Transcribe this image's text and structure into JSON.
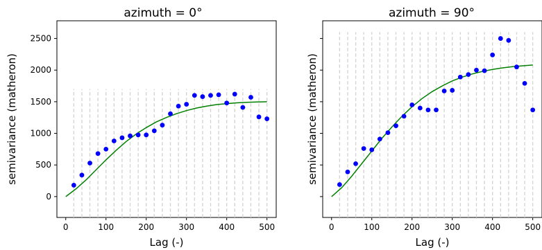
{
  "colors": {
    "points": "#0000ff",
    "model": "#008000",
    "bins": "#d3d3d3"
  },
  "chart_data": [
    {
      "type": "scatter",
      "title": "azimuth = 0°",
      "xlabel": "Lag (-)",
      "ylabel": "semivariance (matheron)",
      "xlim": [
        -22,
        523
      ],
      "ylim": [
        -330,
        2780
      ],
      "xticks": [
        "0",
        "100",
        "200",
        "300",
        "400",
        "500"
      ],
      "yticks": [
        "0",
        "500",
        "1000",
        "1500",
        "2000",
        "2500"
      ],
      "bin_lines_top": 1700,
      "bins": [
        20,
        40,
        60,
        80,
        100,
        120,
        140,
        160,
        180,
        200,
        220,
        240,
        260,
        280,
        300,
        320,
        340,
        360,
        380,
        400,
        420,
        440,
        460,
        480,
        500
      ],
      "points": {
        "x": [
          20,
          40,
          60,
          80,
          100,
          120,
          140,
          160,
          180,
          200,
          220,
          240,
          260,
          280,
          300,
          320,
          340,
          360,
          380,
          400,
          420,
          440,
          460,
          480,
          500
        ],
        "y": [
          180,
          340,
          530,
          680,
          750,
          880,
          930,
          960,
          975,
          975,
          1040,
          1130,
          1310,
          1430,
          1460,
          1600,
          1580,
          1600,
          1610,
          1480,
          1620,
          1410,
          1570,
          1260,
          1230
        ]
      },
      "model": {
        "x": [
          0,
          25,
          50,
          75,
          100,
          125,
          150,
          175,
          200,
          225,
          250,
          275,
          300,
          325,
          350,
          375,
          400,
          425,
          450,
          475,
          500
        ],
        "y": [
          0,
          120,
          260,
          420,
          580,
          730,
          870,
          990,
          1090,
          1180,
          1250,
          1310,
          1360,
          1400,
          1430,
          1455,
          1470,
          1482,
          1490,
          1496,
          1500
        ]
      }
    },
    {
      "type": "scatter",
      "title": "azimuth = 90°",
      "xlabel": "Lag (-)",
      "ylabel": "semivariance (matheron)",
      "xlim": [
        -22,
        523
      ],
      "ylim": [
        -330,
        2780
      ],
      "xticks": [
        "0",
        "100",
        "200",
        "300",
        "400",
        "500"
      ],
      "yticks": [
        "0",
        "500",
        "1000",
        "1500",
        "2000",
        "2500"
      ],
      "bin_lines_top": 2600,
      "bins": [
        20,
        40,
        60,
        80,
        100,
        120,
        140,
        160,
        180,
        200,
        220,
        240,
        260,
        280,
        300,
        320,
        340,
        360,
        380,
        400,
        420,
        440,
        460,
        480,
        500
      ],
      "points": {
        "x": [
          20,
          40,
          60,
          80,
          100,
          120,
          140,
          160,
          180,
          200,
          220,
          240,
          260,
          280,
          300,
          320,
          340,
          360,
          380,
          400,
          420,
          440,
          460,
          480,
          500
        ],
        "y": [
          190,
          390,
          520,
          760,
          740,
          910,
          1010,
          1120,
          1270,
          1450,
          1400,
          1370,
          1370,
          1670,
          1680,
          1890,
          1930,
          2000,
          1990,
          2240,
          2500,
          2470,
          2050,
          1790,
          1370
        ]
      },
      "model": {
        "x": [
          0,
          25,
          50,
          75,
          100,
          125,
          150,
          175,
          200,
          225,
          250,
          275,
          300,
          325,
          350,
          375,
          400,
          425,
          450,
          475,
          500
        ],
        "y": [
          0,
          140,
          320,
          520,
          720,
          920,
          1100,
          1270,
          1420,
          1550,
          1660,
          1750,
          1830,
          1890,
          1940,
          1980,
          2010,
          2035,
          2055,
          2068,
          2080
        ]
      }
    }
  ]
}
